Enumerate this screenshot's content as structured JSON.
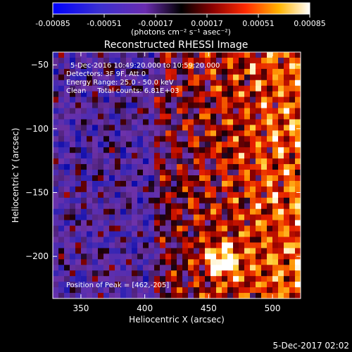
{
  "chart_data": {
    "type": "heatmap",
    "title": "Reconstructed RHESSI Image",
    "colorbar": {
      "ticks": [
        "-0.00085",
        "-0.00051",
        "-0.00017",
        "0.00017",
        "0.00051",
        "0.00085"
      ],
      "min": -0.00085,
      "max": 0.00085,
      "unit_label": "(photons cm⁻² s⁻¹ asec⁻²)"
    },
    "annotations": [
      "5-Dec-2016 10:49:20.000 to 10:59:20.000",
      "Detectors: 3F 9F, Att 0",
      "Energy Range: 25.0 - 50.0 keV",
      "Clean     Total counts: 6.81E+03"
    ],
    "peak_label": "Position of Peak = [462,-205]",
    "peak": [
      462,
      -205
    ],
    "xlabel": "Heliocentric X (arcsec)",
    "ylabel": "Heliocentric Y (arcsec)",
    "xlim": [
      328,
      522
    ],
    "ylim": [
      -233,
      -40
    ],
    "x_ticks": [
      350,
      400,
      450,
      500
    ],
    "x_tick_labels": [
      "350",
      "400",
      "450",
      "500"
    ],
    "y_ticks": [
      -50,
      -100,
      -150,
      -200
    ],
    "y_tick_labels": [
      "−50",
      "−100",
      "−150",
      "−200"
    ]
  },
  "timestamp": "5-Dec-2017 02:02"
}
